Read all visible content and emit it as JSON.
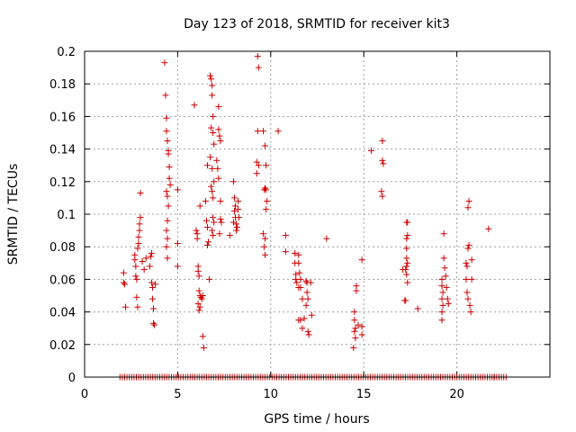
{
  "chart_data": {
    "type": "scatter",
    "title": "Day 123 of 2018, SRMTID for receiver kit3",
    "xlabel": "GPS time / hours",
    "ylabel": "SRMTID / TECUs",
    "xlim": [
      0,
      25
    ],
    "ylim": [
      0,
      0.2
    ],
    "x_ticks": [
      "0",
      "5",
      "10",
      "15",
      "20"
    ],
    "y_ticks": [
      "0",
      "0.02",
      "0.04",
      "0.06",
      "0.08",
      "0.1",
      "0.12",
      "0.14",
      "0.16",
      "0.18",
      "0.2"
    ],
    "grid": true,
    "marker": "+",
    "color": "#cc0000",
    "series": [
      {
        "name": "SRMTID",
        "points": [
          [
            2.1,
            0.064
          ],
          [
            2.1,
            0.058
          ],
          [
            2.15,
            0.057
          ],
          [
            2.2,
            0.043
          ],
          [
            2.7,
            0.075
          ],
          [
            2.7,
            0.072
          ],
          [
            2.75,
            0.068
          ],
          [
            2.75,
            0.062
          ],
          [
            2.8,
            0.06
          ],
          [
            2.8,
            0.049
          ],
          [
            2.85,
            0.043
          ],
          [
            2.85,
            0.079
          ],
          [
            2.9,
            0.082
          ],
          [
            2.9,
            0.086
          ],
          [
            2.95,
            0.09
          ],
          [
            2.95,
            0.094
          ],
          [
            3.0,
            0.098
          ],
          [
            3.0,
            0.113
          ],
          [
            3.1,
            0.071
          ],
          [
            3.2,
            0.066
          ],
          [
            3.3,
            0.073
          ],
          [
            3.5,
            0.068
          ],
          [
            3.55,
            0.074
          ],
          [
            3.6,
            0.076
          ],
          [
            3.6,
            0.058
          ],
          [
            3.65,
            0.055
          ],
          [
            3.65,
            0.048
          ],
          [
            3.7,
            0.042
          ],
          [
            3.7,
            0.033
          ],
          [
            3.75,
            0.032
          ],
          [
            3.8,
            0.057
          ],
          [
            4.3,
            0.193
          ],
          [
            4.35,
            0.173
          ],
          [
            4.4,
            0.159
          ],
          [
            4.4,
            0.151
          ],
          [
            4.45,
            0.145
          ],
          [
            4.5,
            0.139
          ],
          [
            4.5,
            0.137
          ],
          [
            4.55,
            0.129
          ],
          [
            4.55,
            0.122
          ],
          [
            4.4,
            0.114
          ],
          [
            4.45,
            0.111
          ],
          [
            4.5,
            0.105
          ],
          [
            4.45,
            0.096
          ],
          [
            4.4,
            0.09
          ],
          [
            4.45,
            0.085
          ],
          [
            4.4,
            0.08
          ],
          [
            4.45,
            0.073
          ],
          [
            4.6,
            0.118
          ],
          [
            5.0,
            0.115
          ],
          [
            5.0,
            0.082
          ],
          [
            5.0,
            0.068
          ],
          [
            5.9,
            0.167
          ],
          [
            6.0,
            0.09
          ],
          [
            6.05,
            0.088
          ],
          [
            6.05,
            0.085
          ],
          [
            6.1,
            0.068
          ],
          [
            6.1,
            0.065
          ],
          [
            6.15,
            0.062
          ],
          [
            6.15,
            0.053
          ],
          [
            6.2,
            0.05
          ],
          [
            6.25,
            0.049
          ],
          [
            6.3,
            0.048
          ],
          [
            6.35,
            0.05
          ],
          [
            6.1,
            0.045
          ],
          [
            6.2,
            0.043
          ],
          [
            6.15,
            0.041
          ],
          [
            6.35,
            0.025
          ],
          [
            6.4,
            0.018
          ],
          [
            6.2,
            0.105
          ],
          [
            6.5,
            0.108
          ],
          [
            6.55,
            0.096
          ],
          [
            6.6,
            0.092
          ],
          [
            6.65,
            0.083
          ],
          [
            6.6,
            0.081
          ],
          [
            6.7,
            0.06
          ],
          [
            6.6,
            0.13
          ],
          [
            6.75,
            0.185
          ],
          [
            6.8,
            0.183
          ],
          [
            6.85,
            0.179
          ],
          [
            6.85,
            0.173
          ],
          [
            6.9,
            0.16
          ],
          [
            6.8,
            0.153
          ],
          [
            6.9,
            0.15
          ],
          [
            6.95,
            0.143
          ],
          [
            6.75,
            0.135
          ],
          [
            6.85,
            0.128
          ],
          [
            6.95,
            0.12
          ],
          [
            6.8,
            0.117
          ],
          [
            6.85,
            0.114
          ],
          [
            6.9,
            0.11
          ],
          [
            6.9,
            0.098
          ],
          [
            6.95,
            0.095
          ],
          [
            6.85,
            0.09
          ],
          [
            6.9,
            0.087
          ],
          [
            7.2,
            0.166
          ],
          [
            7.2,
            0.152
          ],
          [
            7.25,
            0.148
          ],
          [
            7.3,
            0.145
          ],
          [
            7.1,
            0.133
          ],
          [
            7.15,
            0.128
          ],
          [
            7.2,
            0.122
          ],
          [
            7.3,
            0.108
          ],
          [
            7.3,
            0.097
          ],
          [
            7.35,
            0.095
          ],
          [
            7.25,
            0.088
          ],
          [
            7.8,
            0.087
          ],
          [
            8.0,
            0.12
          ],
          [
            8.05,
            0.11
          ],
          [
            8.1,
            0.105
          ],
          [
            8.05,
            0.102
          ],
          [
            8.1,
            0.098
          ],
          [
            8.15,
            0.094
          ],
          [
            8.2,
            0.092
          ],
          [
            8.15,
            0.09
          ],
          [
            8.25,
            0.108
          ],
          [
            8.25,
            0.103
          ],
          [
            8.3,
            0.098
          ],
          [
            8.0,
            0.095
          ],
          [
            9.3,
            0.197
          ],
          [
            9.35,
            0.19
          ],
          [
            9.3,
            0.151
          ],
          [
            9.25,
            0.132
          ],
          [
            9.25,
            0.125
          ],
          [
            9.35,
            0.13
          ],
          [
            9.6,
            0.151
          ],
          [
            9.7,
            0.142
          ],
          [
            9.75,
            0.13
          ],
          [
            9.7,
            0.116
          ],
          [
            9.75,
            0.115
          ],
          [
            9.65,
            0.115
          ],
          [
            9.8,
            0.108
          ],
          [
            9.75,
            0.103
          ],
          [
            9.6,
            0.088
          ],
          [
            9.7,
            0.085
          ],
          [
            9.65,
            0.08
          ],
          [
            9.7,
            0.075
          ],
          [
            10.4,
            0.151
          ],
          [
            10.8,
            0.087
          ],
          [
            10.8,
            0.077
          ],
          [
            11.3,
            0.076
          ],
          [
            11.3,
            0.07
          ],
          [
            11.35,
            0.063
          ],
          [
            11.35,
            0.06
          ],
          [
            11.4,
            0.058
          ],
          [
            11.5,
            0.075
          ],
          [
            11.5,
            0.07
          ],
          [
            11.55,
            0.064
          ],
          [
            11.6,
            0.06
          ],
          [
            11.5,
            0.055
          ],
          [
            11.6,
            0.055
          ],
          [
            11.7,
            0.048
          ],
          [
            11.5,
            0.035
          ],
          [
            11.6,
            0.035
          ],
          [
            11.7,
            0.03
          ],
          [
            11.8,
            0.036
          ],
          [
            11.9,
            0.059
          ],
          [
            11.95,
            0.058
          ],
          [
            11.95,
            0.052
          ],
          [
            12.0,
            0.048
          ],
          [
            11.9,
            0.044
          ],
          [
            12.0,
            0.028
          ],
          [
            12.05,
            0.026
          ],
          [
            12.15,
            0.058
          ],
          [
            12.2,
            0.038
          ],
          [
            13.0,
            0.085
          ],
          [
            14.5,
            0.04
          ],
          [
            14.5,
            0.035
          ],
          [
            14.55,
            0.03
          ],
          [
            14.5,
            0.028
          ],
          [
            14.55,
            0.024
          ],
          [
            14.45,
            0.018
          ],
          [
            14.6,
            0.053
          ],
          [
            14.6,
            0.056
          ],
          [
            14.7,
            0.032
          ],
          [
            14.9,
            0.072
          ],
          [
            14.9,
            0.031
          ],
          [
            14.9,
            0.026
          ],
          [
            15.4,
            0.139
          ],
          [
            16.0,
            0.145
          ],
          [
            16.0,
            0.133
          ],
          [
            16.05,
            0.131
          ],
          [
            15.95,
            0.114
          ],
          [
            16.0,
            0.111
          ],
          [
            17.1,
            0.066
          ],
          [
            17.2,
            0.047
          ],
          [
            17.25,
            0.047
          ],
          [
            17.3,
            0.095
          ],
          [
            17.35,
            0.095
          ],
          [
            17.3,
            0.085
          ],
          [
            17.35,
            0.087
          ],
          [
            17.3,
            0.079
          ],
          [
            17.3,
            0.073
          ],
          [
            17.35,
            0.07
          ],
          [
            17.3,
            0.068
          ],
          [
            17.25,
            0.066
          ],
          [
            17.3,
            0.063
          ],
          [
            17.35,
            0.058
          ],
          [
            17.9,
            0.042
          ],
          [
            19.2,
            0.06
          ],
          [
            19.2,
            0.056
          ],
          [
            19.25,
            0.052
          ],
          [
            19.2,
            0.048
          ],
          [
            19.25,
            0.044
          ],
          [
            19.2,
            0.04
          ],
          [
            19.2,
            0.035
          ],
          [
            19.3,
            0.088
          ],
          [
            19.3,
            0.073
          ],
          [
            19.35,
            0.067
          ],
          [
            19.4,
            0.062
          ],
          [
            19.45,
            0.055
          ],
          [
            19.5,
            0.048
          ],
          [
            19.55,
            0.045
          ],
          [
            20.5,
            0.07
          ],
          [
            20.55,
            0.068
          ],
          [
            20.5,
            0.06
          ],
          [
            20.55,
            0.052
          ],
          [
            20.6,
            0.048
          ],
          [
            20.7,
            0.044
          ],
          [
            20.75,
            0.04
          ],
          [
            20.6,
            0.104
          ],
          [
            20.65,
            0.108
          ],
          [
            20.6,
            0.079
          ],
          [
            20.65,
            0.081
          ],
          [
            20.8,
            0.072
          ],
          [
            20.8,
            0.06
          ],
          [
            21.7,
            0.091
          ],
          [
            22.0,
            0.0
          ]
        ]
      }
    ],
    "baseline": {
      "y": 0,
      "x_start": 1.9,
      "x_end": 22.7
    }
  }
}
